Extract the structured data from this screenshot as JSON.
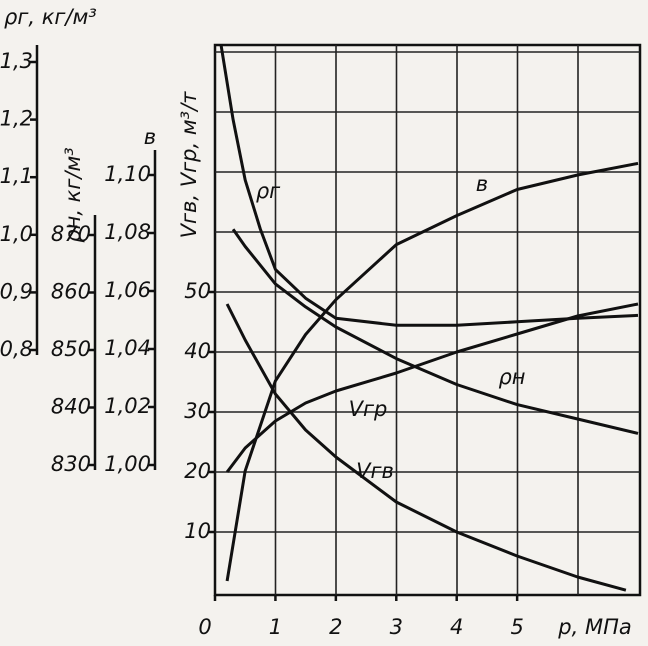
{
  "chart_data": {
    "type": "line",
    "xlabel": "p, МПа",
    "xlim": [
      0,
      7
    ],
    "xticks": [
      0,
      1,
      2,
      3,
      4,
      5
    ],
    "grid": true,
    "y_axes": [
      {
        "label": "ρг, кг/м³",
        "lim": [
          0.8,
          1.3
        ],
        "ticks": [
          {
            "value": 0.8,
            "label": "0,8"
          },
          {
            "value": 0.9,
            "label": "0,9"
          },
          {
            "value": 1.0,
            "label": "1,0"
          },
          {
            "value": 1.1,
            "label": "1,1"
          },
          {
            "value": 1.2,
            "label": "1,2"
          },
          {
            "value": 1.3,
            "label": "1,3"
          }
        ]
      },
      {
        "label": "ρн, кг/м³",
        "lim": [
          830,
          870
        ],
        "ticks": [
          830,
          840,
          850,
          860,
          870
        ]
      },
      {
        "label": "в",
        "lim": [
          1.0,
          1.1
        ],
        "ticks": [
          {
            "value": 1.0,
            "label": "1,00"
          },
          {
            "value": 1.02,
            "label": "1,02"
          },
          {
            "value": 1.04,
            "label": "1,04"
          },
          {
            "value": 1.06,
            "label": "1,06"
          },
          {
            "value": 1.08,
            "label": "1,08"
          },
          {
            "value": 1.1,
            "label": "1,10"
          }
        ]
      },
      {
        "label": "Vгв, Vгр, м³/т",
        "lim": [
          0,
          90
        ],
        "ticks": [
          10,
          20,
          30,
          40,
          50
        ]
      }
    ],
    "series": [
      {
        "name": "ρг",
        "axis": 0,
        "color": "#111111",
        "x": [
          0.1,
          0.3,
          0.5,
          0.75,
          1,
          1.5,
          2,
          3,
          4,
          5,
          6,
          7
        ],
        "values": [
          1.33,
          1.2,
          1.095,
          1.01,
          0.94,
          0.89,
          0.855,
          0.843,
          0.843,
          0.849,
          0.855,
          0.86
        ]
      },
      {
        "name": "в",
        "axis": 2,
        "color": "#111111",
        "x": [
          0.2,
          0.5,
          1,
          1.5,
          2,
          3,
          4,
          5,
          6,
          7
        ],
        "values": [
          0.96,
          0.998,
          1.029,
          1.045,
          1.057,
          1.076,
          1.086,
          1.095,
          1.1,
          1.104
        ]
      },
      {
        "name": "ρн",
        "axis": 1,
        "color": "#111111",
        "x": [
          0.3,
          0.5,
          1,
          1.5,
          2,
          3,
          4,
          5,
          6,
          7
        ],
        "values": [
          871,
          868,
          861.5,
          857.5,
          854,
          848.5,
          844,
          840.5,
          838,
          835.5
        ]
      },
      {
        "name": "Vгр",
        "axis": 3,
        "color": "#111111",
        "x": [
          0.2,
          0.5,
          1,
          1.5,
          2,
          3,
          4,
          5,
          6,
          7
        ],
        "values": [
          20,
          24,
          28.5,
          31.5,
          33.5,
          36.5,
          40,
          43,
          46,
          48
        ]
      },
      {
        "name": "Vгв",
        "axis": 3,
        "color": "#111111",
        "x": [
          0.2,
          0.5,
          1,
          1.5,
          2,
          3,
          4,
          5,
          6,
          6.8
        ],
        "values": [
          48,
          42,
          33,
          27,
          22.5,
          15,
          10,
          6,
          2.5,
          0.3
        ]
      }
    ]
  }
}
